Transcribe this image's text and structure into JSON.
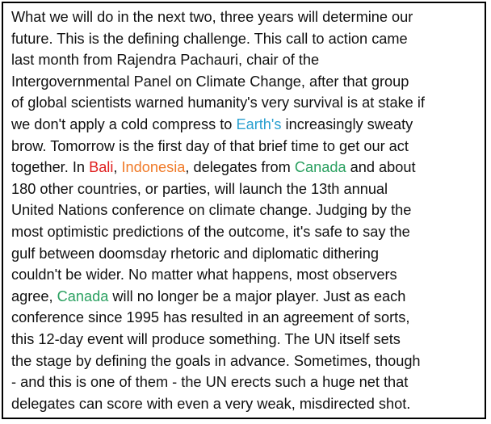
{
  "article": {
    "lines": [
      [
        {
          "text": "What we will do in the next two, three years will determine our"
        }
      ],
      [
        {
          "text": "future. This is the defining challenge. This call to action came"
        }
      ],
      [
        {
          "text": "last month from Rajendra Pachauri, chair of the"
        }
      ],
      [
        {
          "text": "Intergovernmental Panel on Climate Change, after that group"
        }
      ],
      [
        {
          "text": "of global scientists warned humanity's very survival is at stake if"
        }
      ],
      [
        {
          "text": "we don't apply a cold compress to "
        },
        {
          "text": "Earth's",
          "highlight": "blue"
        },
        {
          "text": " increasingly sweaty"
        }
      ],
      [
        {
          "text": "brow. Tomorrow is the first day of that brief time to get our act"
        }
      ],
      [
        {
          "text": "together. In "
        },
        {
          "text": "Bali",
          "highlight": "red"
        },
        {
          "text": ", "
        },
        {
          "text": "Indonesia",
          "highlight": "orange"
        },
        {
          "text": ", delegates from "
        },
        {
          "text": "Canada",
          "highlight": "green"
        },
        {
          "text": " and about"
        }
      ],
      [
        {
          "text": "180 other countries, or parties, will launch the 13th annual"
        }
      ],
      [
        {
          "text": "United Nations conference on climate change. Judging by the"
        }
      ],
      [
        {
          "text": "most optimistic predictions of the outcome, it's safe to say the"
        }
      ],
      [
        {
          "text": "gulf between doomsday rhetoric and diplomatic dithering"
        }
      ],
      [
        {
          "text": "couldn't be wider. No matter what happens, most observers"
        }
      ],
      [
        {
          "text": "agree, "
        },
        {
          "text": "Canada",
          "highlight": "green"
        },
        {
          "text": " will no longer be a major player. Just as each"
        }
      ],
      [
        {
          "text": "conference since 1995 has resulted in an agreement of sorts,"
        }
      ],
      [
        {
          "text": "this 12-day event will produce something. The UN itself sets"
        }
      ],
      [
        {
          "text": "the stage by defining the goals in advance. Sometimes, though"
        }
      ],
      [
        {
          "text": "- and this is one of them - the UN erects such a huge net that"
        }
      ],
      [
        {
          "text": "delegates can score with even a very weak, misdirected shot."
        }
      ]
    ]
  },
  "colors": {
    "text": "#111111",
    "border": "#000000",
    "blue": "#2aa0d0",
    "red": "#e02020",
    "orange": "#f07a28",
    "green": "#2aa060"
  }
}
